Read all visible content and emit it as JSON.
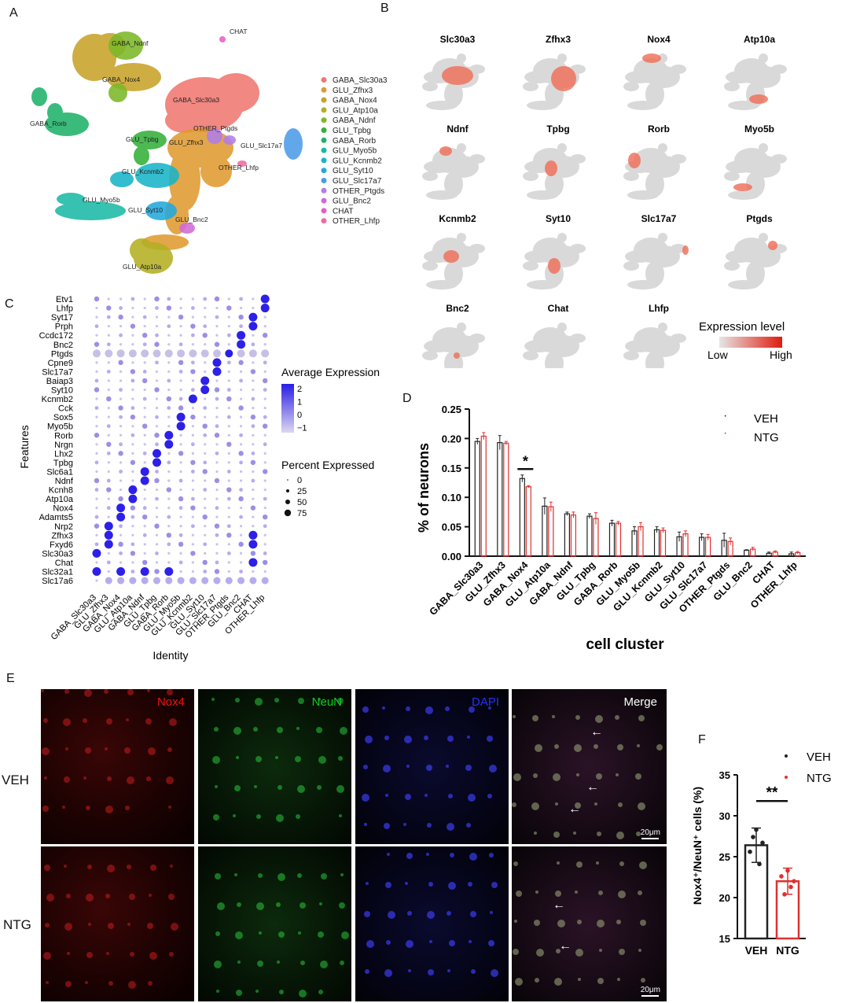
{
  "panels": {
    "a": "A",
    "b": "B",
    "c": "C",
    "d": "D",
    "e": "E",
    "f": "F"
  },
  "colors": {
    "GABA_Slc30a3": "#f07870",
    "GLU_Zfhx3": "#e09a30",
    "GABA_Nox4": "#c8a22a",
    "GLU_Atp10a": "#b3b023",
    "GABA_Ndnf": "#7cb828",
    "GLU_Tpbg": "#34b03a",
    "GABA_Rorb": "#1fb26a",
    "GLU_Myo5b": "#1bb9a6",
    "GLU_Kcnmb2": "#19b4c8",
    "GLU_Syt10": "#22a8dc",
    "GLU_Slc17a7": "#4d9be8",
    "OTHER_Ptgds": "#b07ee8",
    "GLU_Bnc2": "#d06ad8",
    "CHAT": "#e85cc8",
    "OTHER_Lhfp": "#ee6ba0",
    "veh": "#222222",
    "ntg": "#e03030",
    "dot_low": "#d9d2ee",
    "dot_high": "#2a1ee6"
  },
  "umap": {
    "legend": [
      "GABA_Slc30a3",
      "GLU_Zfhx3",
      "GABA_Nox4",
      "GLU_Atp10a",
      "GABA_Ndnf",
      "GLU_Tpbg",
      "GABA_Rorb",
      "GLU_Myo5b",
      "GLU_Kcnmb2",
      "GLU_Syt10",
      "GLU_Slc17a7",
      "OTHER_Ptgds",
      "GLU_Bnc2",
      "CHAT",
      "OTHER_Lhfp"
    ],
    "cluster_labels": [
      "GABA_Ndnf",
      "GABA_Nox4",
      "GABA_Slc30a3",
      "GABA_Rorb",
      "OTHER_Ptgds",
      "GLU_Tpbg",
      "GLU_Zfhx3",
      "GLU_Slc17a7",
      "OTHER_Lhfp",
      "GLU_Kcnmb2",
      "GLU_Myo5b",
      "GLU_Syt10",
      "GLU_Bnc2",
      "GLU_Atp10a",
      "CHAT"
    ]
  },
  "feature_plots": {
    "genes": [
      "Slc30a3",
      "Zfhx3",
      "Nox4",
      "Atp10a",
      "Ndnf",
      "Tpbg",
      "Rorb",
      "Myo5b",
      "Kcnmb2",
      "Syt10",
      "Slc17a7",
      "Ptgds",
      "Bnc2",
      "Chat",
      "Lhfp"
    ],
    "legend_title": "Expression level",
    "low": "Low",
    "high": "High"
  },
  "dotplot": {
    "ylabel": "Features",
    "xlabel": "Identity",
    "features": [
      "Etv1",
      "Lhfp",
      "Syt17",
      "Prph",
      "Ccdc172",
      "Bnc2",
      "Ptgds",
      "Cpne9",
      "Slc17a7",
      "Baiap3",
      "Syt10",
      "Kcnmb2",
      "Cck",
      "Sox5",
      "Myo5b",
      "Rorb",
      "Nrgn",
      "Lhx2",
      "Tpbg",
      "Slc6a1",
      "Ndnf",
      "Kcnh8",
      "Atp10a",
      "Nox4",
      "Adamts5",
      "Nrp2",
      "Zfhx3",
      "Fxyd6",
      "Slc30a3",
      "Chat",
      "Slc32a1",
      "Slc17a6"
    ],
    "identities": [
      "GABA_Slc30a3",
      "GLU_Zfhx3",
      "GABA_Nox4",
      "GLU_Atp10a",
      "GABA_Ndnf",
      "GLU_Tpbg",
      "GABA_Rorb",
      "GLU_Myo5b",
      "GLU_Kcnmb2",
      "GLU_Syt10",
      "GLU_Slc17a7",
      "OTHER_Ptgds",
      "GLU_Bnc2",
      "CHAT",
      "OTHER_Lhfp"
    ],
    "avg_title": "Average Expression",
    "avg_ticks": [
      "2",
      "1",
      "0",
      "−1"
    ],
    "pct_title": "Percent Expressed",
    "pct_ticks": [
      "0",
      "25",
      "50",
      "75"
    ]
  },
  "chart_data": [
    {
      "type": "bar",
      "title": "",
      "xlabel": "cell cluster",
      "ylabel": "% of neurons",
      "ylim": [
        0,
        0.25
      ],
      "yticks": [
        "0.00",
        "0.05",
        "0.10",
        "0.15",
        "0.20",
        "0.25"
      ],
      "categories": [
        "GABA_Slc30a3",
        "GLU_Zfhx3",
        "GABA_Nox4",
        "GLU_Atp10a",
        "GABA_Ndnf",
        "GLU_Tpbg",
        "GABA_Rorb",
        "GLU_Myo5b",
        "GLU_Kcnmb2",
        "GLU_Syt10",
        "GLU_Slc17a7",
        "OTHER_Ptgds",
        "GLU_Bnc2",
        "CHAT",
        "OTHER_Lhfp"
      ],
      "series": [
        {
          "name": "VEH",
          "values": [
            0.195,
            0.193,
            0.132,
            0.085,
            0.072,
            0.068,
            0.056,
            0.043,
            0.045,
            0.033,
            0.032,
            0.027,
            0.01,
            0.005,
            0.004
          ]
        },
        {
          "name": "NTG",
          "values": [
            0.204,
            0.192,
            0.118,
            0.084,
            0.07,
            0.064,
            0.056,
            0.05,
            0.044,
            0.038,
            0.032,
            0.025,
            0.012,
            0.007,
            0.006
          ]
        }
      ],
      "errors": [
        [
          0.005,
          0.012,
          0.006,
          0.014,
          0.003,
          0.004,
          0.005,
          0.007,
          0.005,
          0.008,
          0.006,
          0.012,
          0.001,
          0.002,
          0.003
        ],
        [
          0.006,
          0.003,
          0.002,
          0.008,
          0.005,
          0.01,
          0.003,
          0.007,
          0.004,
          0.005,
          0.005,
          0.006,
          0.003,
          0.002,
          0.002
        ]
      ],
      "annotations": [
        {
          "category": "GABA_Nox4",
          "text": "*"
        }
      ],
      "legend": [
        "VEH",
        "NTG"
      ]
    },
    {
      "type": "bar",
      "title": "",
      "xlabel": "",
      "ylabel": "Nox4⁺/NeuN⁺ cells (%)",
      "ylim": [
        15,
        35
      ],
      "yticks": [
        "15",
        "20",
        "25",
        "30",
        "35"
      ],
      "categories": [
        "VEH",
        "NTG"
      ],
      "values": [
        26.4,
        22.0
      ],
      "errors": [
        2.1,
        1.6
      ],
      "points": [
        [
          25.6,
          27.4,
          28.3,
          24.1,
          26.7
        ],
        [
          22.6,
          20.4,
          23.3,
          21.3,
          22.0
        ]
      ],
      "annotations": [
        {
          "text": "**"
        }
      ],
      "legend": [
        "VEH",
        "NTG"
      ]
    }
  ],
  "micrographs": {
    "columns": [
      "Nox4",
      "NeuN",
      "DAPI",
      "Merge"
    ],
    "rows": [
      "VEH",
      "NTG"
    ],
    "scalebar": "20μm"
  }
}
